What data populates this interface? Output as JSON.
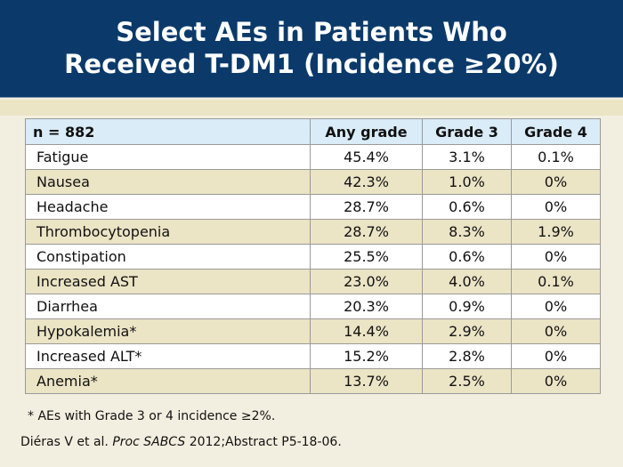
{
  "title": {
    "line1": "Select AEs in Patients Who",
    "line2": "Received T-DM1 (Incidence ≥20%)"
  },
  "table": {
    "headers": [
      "n = 882",
      "Any grade",
      "Grade 3",
      "Grade 4"
    ],
    "rows": [
      [
        "Fatigue",
        "45.4%",
        "3.1%",
        "0.1%"
      ],
      [
        "Nausea",
        "42.3%",
        "1.0%",
        "0%"
      ],
      [
        "Headache",
        "28.7%",
        "0.6%",
        "0%"
      ],
      [
        "Thrombocytopenia",
        "28.7%",
        "8.3%",
        "1.9%"
      ],
      [
        "Constipation",
        "25.5%",
        "0.6%",
        "0%"
      ],
      [
        "Increased AST",
        "23.0%",
        "4.0%",
        "0.1%"
      ],
      [
        "Diarrhea",
        "20.3%",
        "0.9%",
        "0%"
      ],
      [
        "Hypokalemia*",
        "14.4%",
        "2.9%",
        "0%"
      ],
      [
        "Increased ALT*",
        "15.2%",
        "2.8%",
        "0%"
      ],
      [
        "Anemia*",
        "13.7%",
        "2.5%",
        "0%"
      ]
    ]
  },
  "footnote": "* AEs with Grade 3 or 4 incidence ≥2%.",
  "citation": {
    "authors": "Diéras V et al.",
    "journal": "Proc SABCS",
    "rest": "2012;Abstract P5-18-06."
  },
  "colors": {
    "header_bg": "#0b3a6a",
    "table_header_bg": "#d9ecf7",
    "stripe": "#ebe4c5",
    "page_bg": "#f3efe0"
  }
}
